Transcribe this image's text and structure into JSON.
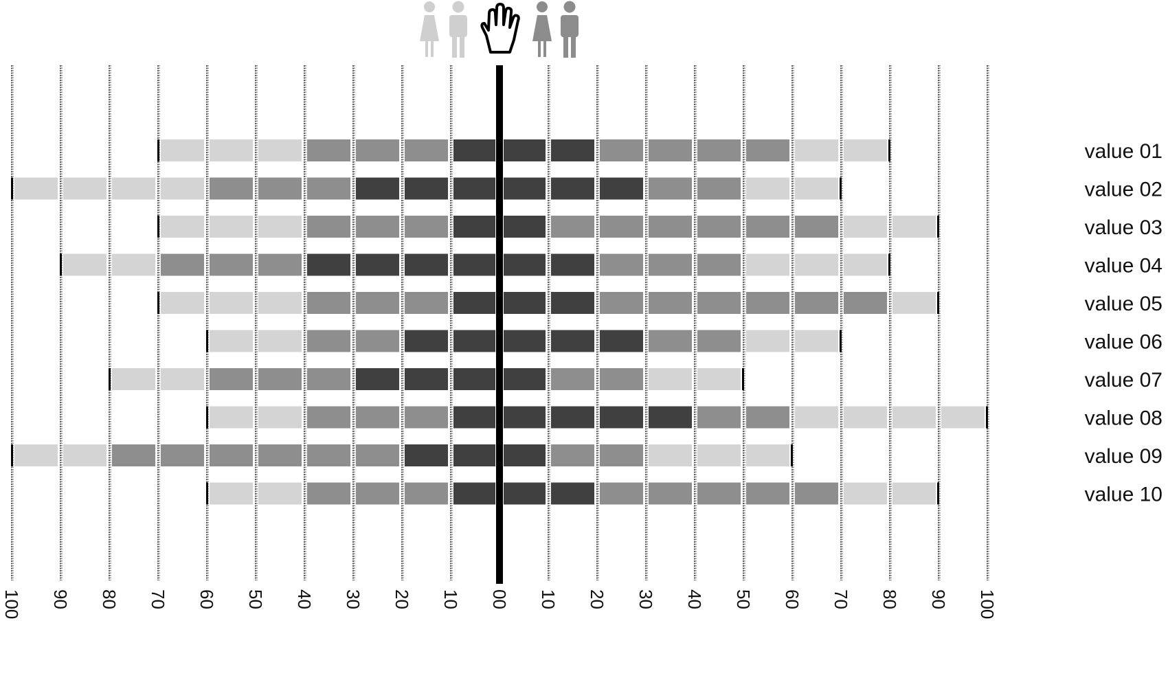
{
  "legend": {
    "icons": [
      {
        "name": "female-icon",
        "side": "left",
        "color": "#cfcfcf"
      },
      {
        "name": "male-icon",
        "side": "left",
        "color": "#cfcfcf"
      },
      {
        "name": "hand-icon",
        "side": "center",
        "color": "#000000"
      },
      {
        "name": "female-icon",
        "side": "right",
        "color": "#8c8c8c"
      },
      {
        "name": "male-icon",
        "side": "right",
        "color": "#8c8c8c"
      }
    ]
  },
  "colors": {
    "light": "#d4d4d4",
    "mid": "#8e8e8e",
    "dark": "#404040",
    "axis": "#000000"
  },
  "chart_data": {
    "type": "bar",
    "subtype": "diverging-segmented",
    "title": "",
    "xlabel": "",
    "ylabel": "",
    "xlim": [
      -100,
      100
    ],
    "ticks": [
      -100,
      -90,
      -80,
      -70,
      -60,
      -50,
      -40,
      -30,
      -20,
      -10,
      0,
      10,
      20,
      30,
      40,
      50,
      60,
      70,
      80,
      90,
      100
    ],
    "tick_labels": [
      "100",
      "90",
      "80",
      "70",
      "60",
      "50",
      "40",
      "30",
      "20",
      "10",
      "00",
      "10",
      "20",
      "30",
      "40",
      "50",
      "60",
      "70",
      "80",
      "90",
      "100"
    ],
    "segment_width": 10,
    "grid": true,
    "rows": [
      {
        "label": "value 01",
        "left": [
          "D",
          "M",
          "M",
          "M",
          "L",
          "L",
          "L"
        ],
        "right": [
          "D",
          "D",
          "M",
          "M",
          "M",
          "M",
          "L",
          "L"
        ]
      },
      {
        "label": "value 02",
        "left": [
          "D",
          "D",
          "D",
          "M",
          "M",
          "M",
          "L",
          "L",
          "L",
          "L"
        ],
        "right": [
          "D",
          "D",
          "D",
          "M",
          "M",
          "L",
          "L"
        ]
      },
      {
        "label": "value 03",
        "left": [
          "D",
          "M",
          "M",
          "M",
          "L",
          "L",
          "L"
        ],
        "right": [
          "D",
          "M",
          "M",
          "M",
          "M",
          "M",
          "M",
          "L",
          "L"
        ]
      },
      {
        "label": "value 04",
        "left": [
          "D",
          "D",
          "D",
          "D",
          "M",
          "M",
          "M",
          "L",
          "L"
        ],
        "right": [
          "D",
          "D",
          "M",
          "M",
          "M",
          "L",
          "L",
          "L"
        ]
      },
      {
        "label": "value 05",
        "left": [
          "D",
          "M",
          "M",
          "M",
          "L",
          "L",
          "L"
        ],
        "right": [
          "D",
          "D",
          "M",
          "M",
          "M",
          "M",
          "M",
          "M",
          "L"
        ]
      },
      {
        "label": "value 06",
        "left": [
          "D",
          "D",
          "M",
          "M",
          "L",
          "L"
        ],
        "right": [
          "D",
          "D",
          "D",
          "M",
          "M",
          "L",
          "L"
        ]
      },
      {
        "label": "value 07",
        "left": [
          "D",
          "D",
          "D",
          "M",
          "M",
          "M",
          "L",
          "L"
        ],
        "right": [
          "D",
          "M",
          "M",
          "L",
          "L"
        ]
      },
      {
        "label": "value 08",
        "left": [
          "D",
          "M",
          "M",
          "M",
          "L",
          "L"
        ],
        "right": [
          "D",
          "D",
          "D",
          "D",
          "M",
          "M",
          "L",
          "L",
          "L",
          "L"
        ]
      },
      {
        "label": "value 09",
        "left": [
          "D",
          "D",
          "M",
          "M",
          "M",
          "M",
          "M",
          "M",
          "L",
          "L"
        ],
        "right": [
          "D",
          "M",
          "M",
          "L",
          "L",
          "L"
        ]
      },
      {
        "label": "value 10",
        "left": [
          "D",
          "M",
          "M",
          "M",
          "L",
          "L"
        ],
        "right": [
          "D",
          "D",
          "M",
          "M",
          "M",
          "M",
          "M",
          "L",
          "L"
        ]
      }
    ]
  }
}
